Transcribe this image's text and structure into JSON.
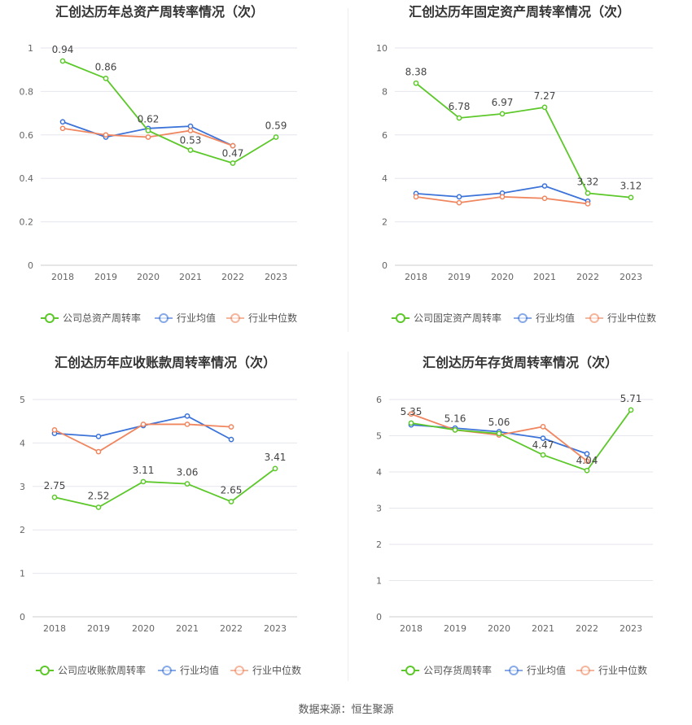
{
  "colors": {
    "company": "#5cc82a",
    "average": "#3b73d9",
    "median": "#f0865f",
    "grid": "#e6e6ee",
    "axis_text": "#666666",
    "title": "#333333"
  },
  "source_label": "数据来源：恒生聚源",
  "chart_data": [
    {
      "type": "line",
      "title": "汇创达历年总资产周转率情况（次）",
      "categories": [
        "2018",
        "2019",
        "2020",
        "2021",
        "2022",
        "2023"
      ],
      "ylim": [
        0,
        1
      ],
      "yticks": [
        "0",
        "0.2",
        "0.4",
        "0.6",
        "0.8",
        "1"
      ],
      "series": [
        {
          "name": "公司总资产周转率",
          "key": "company",
          "values": [
            0.94,
            0.86,
            0.62,
            0.53,
            0.47,
            0.59
          ],
          "labels": [
            "0.94",
            "0.86",
            "0.62",
            "0.53",
            "0.47",
            "0.59"
          ]
        },
        {
          "name": "行业均值",
          "key": "average",
          "values": [
            0.66,
            0.59,
            0.63,
            0.64,
            0.55,
            null
          ]
        },
        {
          "name": "行业中位数",
          "key": "median",
          "values": [
            0.63,
            0.6,
            0.59,
            0.62,
            0.55,
            null
          ]
        }
      ]
    },
    {
      "type": "line",
      "title": "汇创达历年固定资产周转率情况（次）",
      "categories": [
        "2018",
        "2019",
        "2020",
        "2021",
        "2022",
        "2023"
      ],
      "ylim": [
        0,
        10
      ],
      "yticks": [
        "0",
        "2",
        "4",
        "6",
        "8",
        "10"
      ],
      "series": [
        {
          "name": "公司固定资产周转率",
          "key": "company",
          "values": [
            8.38,
            6.78,
            6.97,
            7.27,
            3.32,
            3.12
          ],
          "labels": [
            "8.38",
            "6.78",
            "6.97",
            "7.27",
            "3.32",
            "3.12"
          ]
        },
        {
          "name": "行业均值",
          "key": "average",
          "values": [
            3.3,
            3.15,
            3.32,
            3.65,
            2.95,
            null
          ]
        },
        {
          "name": "行业中位数",
          "key": "median",
          "values": [
            3.15,
            2.88,
            3.15,
            3.08,
            2.83,
            null
          ]
        }
      ]
    },
    {
      "type": "line",
      "title": "汇创达历年应收账款周转率情况（次）",
      "categories": [
        "2018",
        "2019",
        "2020",
        "2021",
        "2022",
        "2023"
      ],
      "ylim": [
        0,
        5
      ],
      "yticks": [
        "0",
        "1",
        "2",
        "3",
        "4",
        "5"
      ],
      "series": [
        {
          "name": "公司应收账款周转率",
          "key": "company",
          "values": [
            2.75,
            2.52,
            3.11,
            3.06,
            2.65,
            3.41
          ],
          "labels": [
            "2.75",
            "2.52",
            "3.11",
            "3.06",
            "2.65",
            "3.41"
          ]
        },
        {
          "name": "行业均值",
          "key": "average",
          "values": [
            4.22,
            4.15,
            4.4,
            4.62,
            4.08,
            null
          ]
        },
        {
          "name": "行业中位数",
          "key": "median",
          "values": [
            4.3,
            3.8,
            4.43,
            4.43,
            4.37,
            null
          ]
        }
      ]
    },
    {
      "type": "line",
      "title": "汇创达历年存货周转率情况（次）",
      "categories": [
        "2018",
        "2019",
        "2020",
        "2021",
        "2022",
        "2023"
      ],
      "ylim": [
        0,
        6
      ],
      "yticks": [
        "0",
        "1",
        "2",
        "3",
        "4",
        "5",
        "6"
      ],
      "series": [
        {
          "name": "公司存货周转率",
          "key": "company",
          "values": [
            5.35,
            5.16,
            5.06,
            4.47,
            4.04,
            5.71
          ],
          "labels": [
            "5.35",
            "5.16",
            "5.06",
            "4.47",
            "4.04",
            "5.71"
          ]
        },
        {
          "name": "行业均值",
          "key": "average",
          "values": [
            5.3,
            5.21,
            5.11,
            4.93,
            4.5,
            null
          ]
        },
        {
          "name": "行业中位数",
          "key": "median",
          "values": [
            5.6,
            5.16,
            5.02,
            5.25,
            4.3,
            null
          ]
        }
      ]
    }
  ]
}
